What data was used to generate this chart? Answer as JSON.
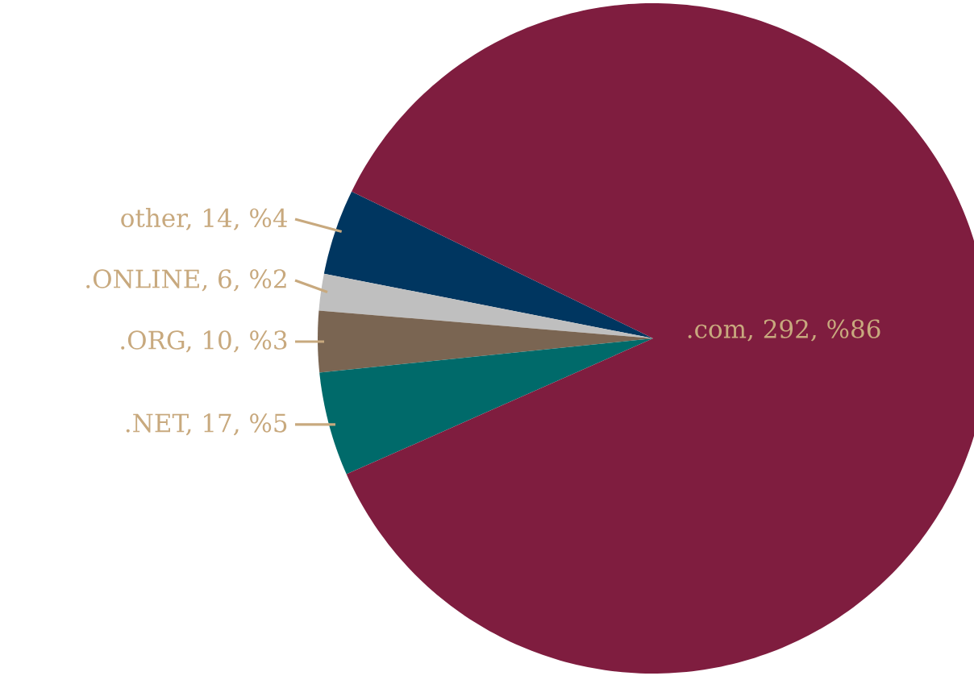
{
  "chart_data": {
    "type": "pie",
    "categories": [
      "other, 14, %4",
      ".ONLINE, 6, %2",
      ".ORG, 10, %3",
      ".NET, 17, %5",
      ".com, 292, %86"
    ],
    "values": [
      14,
      6,
      10,
      17,
      292
    ],
    "colors": [
      "#003660",
      "#bfbfbf",
      "#7a6552",
      "#006a6a",
      "#7f1d3f"
    ]
  }
}
